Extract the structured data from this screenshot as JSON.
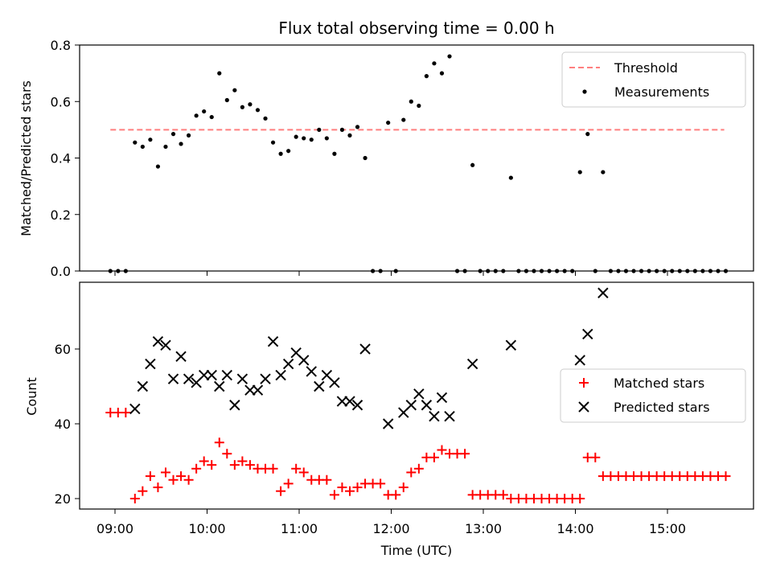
{
  "chart_data": [
    {
      "type": "scatter",
      "title": "Flux total observing time = 0.00 h",
      "xlabel": "",
      "ylabel": "Matched/Predicted stars",
      "ylim": [
        0,
        0.8
      ],
      "yticks": [
        "0.0",
        "0.2",
        "0.4",
        "0.6",
        "0.8"
      ],
      "threshold": {
        "name": "Threshold",
        "value": 0.5,
        "x_range": [
          "08:57",
          "15:37"
        ],
        "color": "#ff7f7f"
      },
      "legend_position": "top-right",
      "series": [
        {
          "name": "Measurements",
          "color": "#000000",
          "points": [
            [
              "08:57",
              0.0
            ],
            [
              "09:02",
              0.0
            ],
            [
              "09:07",
              0.0
            ],
            [
              "09:13",
              0.455
            ],
            [
              "09:18",
              0.44
            ],
            [
              "09:23",
              0.465
            ],
            [
              "09:28",
              0.37
            ],
            [
              "09:33",
              0.44
            ],
            [
              "09:38",
              0.485
            ],
            [
              "09:43",
              0.45
            ],
            [
              "09:48",
              0.48
            ],
            [
              "09:53",
              0.55
            ],
            [
              "09:58",
              0.565
            ],
            [
              "10:03",
              0.545
            ],
            [
              "10:08",
              0.7
            ],
            [
              "10:13",
              0.605
            ],
            [
              "10:18",
              0.64
            ],
            [
              "10:23",
              0.58
            ],
            [
              "10:28",
              0.59
            ],
            [
              "10:33",
              0.57
            ],
            [
              "10:38",
              0.54
            ],
            [
              "10:43",
              0.455
            ],
            [
              "10:48",
              0.415
            ],
            [
              "10:53",
              0.425
            ],
            [
              "10:58",
              0.475
            ],
            [
              "11:03",
              0.47
            ],
            [
              "11:08",
              0.465
            ],
            [
              "11:13",
              0.5
            ],
            [
              "11:18",
              0.47
            ],
            [
              "11:23",
              0.415
            ],
            [
              "11:28",
              0.5
            ],
            [
              "11:33",
              0.48
            ],
            [
              "11:38",
              0.51
            ],
            [
              "11:43",
              0.4
            ],
            [
              "11:48",
              0.0
            ],
            [
              "11:53",
              0.0
            ],
            [
              "11:58",
              0.525
            ],
            [
              "12:03",
              0.0
            ],
            [
              "12:08",
              0.535
            ],
            [
              "12:13",
              0.6
            ],
            [
              "12:18",
              0.585
            ],
            [
              "12:23",
              0.69
            ],
            [
              "12:28",
              0.735
            ],
            [
              "12:33",
              0.7
            ],
            [
              "12:38",
              0.76
            ],
            [
              "12:43",
              0.0
            ],
            [
              "12:48",
              0.0
            ],
            [
              "12:53",
              0.375
            ],
            [
              "12:58",
              0.0
            ],
            [
              "13:03",
              0.0
            ],
            [
              "13:08",
              0.0
            ],
            [
              "13:13",
              0.0
            ],
            [
              "13:18",
              0.33
            ],
            [
              "13:23",
              0.0
            ],
            [
              "13:28",
              0.0
            ],
            [
              "13:33",
              0.0
            ],
            [
              "13:38",
              0.0
            ],
            [
              "13:43",
              0.0
            ],
            [
              "13:48",
              0.0
            ],
            [
              "13:53",
              0.0
            ],
            [
              "13:58",
              0.0
            ],
            [
              "14:03",
              0.35
            ],
            [
              "14:08",
              0.485
            ],
            [
              "14:13",
              0.0
            ],
            [
              "14:18",
              0.35
            ],
            [
              "14:23",
              0.0
            ],
            [
              "14:28",
              0.0
            ],
            [
              "14:33",
              0.0
            ],
            [
              "14:38",
              0.0
            ],
            [
              "14:43",
              0.0
            ],
            [
              "14:48",
              0.0
            ],
            [
              "14:53",
              0.0
            ],
            [
              "14:58",
              0.0
            ],
            [
              "15:03",
              0.0
            ],
            [
              "15:08",
              0.0
            ],
            [
              "15:13",
              0.0
            ],
            [
              "15:18",
              0.0
            ],
            [
              "15:23",
              0.0
            ],
            [
              "15:28",
              0.0
            ],
            [
              "15:33",
              0.0
            ],
            [
              "15:38",
              0.0
            ]
          ]
        }
      ]
    },
    {
      "type": "scatter",
      "xlabel": "Time (UTC)",
      "ylabel": "Count",
      "ylim": [
        17,
        77
      ],
      "yticks": [
        "20",
        "40",
        "60"
      ],
      "xticks": [
        "09:00",
        "10:00",
        "11:00",
        "12:00",
        "13:00",
        "14:00",
        "15:00"
      ],
      "legend_position": "center-right",
      "series": [
        {
          "name": "Matched stars",
          "marker": "plus",
          "color": "#ff0000",
          "points": [
            [
              "08:57",
              43
            ],
            [
              "09:02",
              43
            ],
            [
              "09:07",
              43
            ],
            [
              "09:13",
              20
            ],
            [
              "09:18",
              22
            ],
            [
              "09:23",
              26
            ],
            [
              "09:28",
              23
            ],
            [
              "09:33",
              27
            ],
            [
              "09:38",
              25
            ],
            [
              "09:43",
              26
            ],
            [
              "09:48",
              25
            ],
            [
              "09:53",
              28
            ],
            [
              "09:58",
              30
            ],
            [
              "10:03",
              29
            ],
            [
              "10:08",
              35
            ],
            [
              "10:13",
              32
            ],
            [
              "10:18",
              29
            ],
            [
              "10:23",
              30
            ],
            [
              "10:28",
              29
            ],
            [
              "10:33",
              28
            ],
            [
              "10:38",
              28
            ],
            [
              "10:43",
              28
            ],
            [
              "10:48",
              22
            ],
            [
              "10:53",
              24
            ],
            [
              "10:58",
              28
            ],
            [
              "11:03",
              27
            ],
            [
              "11:08",
              25
            ],
            [
              "11:13",
              25
            ],
            [
              "11:18",
              25
            ],
            [
              "11:23",
              21
            ],
            [
              "11:28",
              23
            ],
            [
              "11:33",
              22
            ],
            [
              "11:38",
              23
            ],
            [
              "11:43",
              24
            ],
            [
              "11:48",
              24
            ],
            [
              "11:53",
              24
            ],
            [
              "11:58",
              21
            ],
            [
              "12:03",
              21
            ],
            [
              "12:08",
              23
            ],
            [
              "12:13",
              27
            ],
            [
              "12:18",
              28
            ],
            [
              "12:23",
              31
            ],
            [
              "12:28",
              31
            ],
            [
              "12:33",
              33
            ],
            [
              "12:38",
              32
            ],
            [
              "12:43",
              32
            ],
            [
              "12:48",
              32
            ],
            [
              "12:53",
              21
            ],
            [
              "12:58",
              21
            ],
            [
              "13:03",
              21
            ],
            [
              "13:08",
              21
            ],
            [
              "13:13",
              21
            ],
            [
              "13:18",
              20
            ],
            [
              "13:23",
              20
            ],
            [
              "13:28",
              20
            ],
            [
              "13:33",
              20
            ],
            [
              "13:38",
              20
            ],
            [
              "13:43",
              20
            ],
            [
              "13:48",
              20
            ],
            [
              "13:53",
              20
            ],
            [
              "13:58",
              20
            ],
            [
              "14:03",
              20
            ],
            [
              "14:08",
              31
            ],
            [
              "14:13",
              31
            ],
            [
              "14:18",
              26
            ],
            [
              "14:23",
              26
            ],
            [
              "14:28",
              26
            ],
            [
              "14:33",
              26
            ],
            [
              "14:38",
              26
            ],
            [
              "14:43",
              26
            ],
            [
              "14:48",
              26
            ],
            [
              "14:53",
              26
            ],
            [
              "14:58",
              26
            ],
            [
              "15:03",
              26
            ],
            [
              "15:08",
              26
            ],
            [
              "15:13",
              26
            ],
            [
              "15:18",
              26
            ],
            [
              "15:23",
              26
            ],
            [
              "15:28",
              26
            ],
            [
              "15:33",
              26
            ],
            [
              "15:38",
              26
            ]
          ]
        },
        {
          "name": "Predicted stars",
          "marker": "x",
          "color": "#000000",
          "points": [
            [
              "09:13",
              44
            ],
            [
              "09:18",
              50
            ],
            [
              "09:23",
              56
            ],
            [
              "09:28",
              62
            ],
            [
              "09:33",
              61
            ],
            [
              "09:38",
              52
            ],
            [
              "09:43",
              58
            ],
            [
              "09:48",
              52
            ],
            [
              "09:53",
              51
            ],
            [
              "09:58",
              53
            ],
            [
              "10:03",
              53
            ],
            [
              "10:08",
              50
            ],
            [
              "10:13",
              53
            ],
            [
              "10:18",
              45
            ],
            [
              "10:23",
              52
            ],
            [
              "10:28",
              49
            ],
            [
              "10:33",
              49
            ],
            [
              "10:38",
              52
            ],
            [
              "10:43",
              62
            ],
            [
              "10:48",
              53
            ],
            [
              "10:53",
              56
            ],
            [
              "10:58",
              59
            ],
            [
              "11:03",
              57
            ],
            [
              "11:08",
              54
            ],
            [
              "11:13",
              50
            ],
            [
              "11:18",
              53
            ],
            [
              "11:23",
              51
            ],
            [
              "11:28",
              46
            ],
            [
              "11:33",
              46
            ],
            [
              "11:38",
              45
            ],
            [
              "11:43",
              60
            ],
            [
              "11:58",
              40
            ],
            [
              "12:08",
              43
            ],
            [
              "12:13",
              45
            ],
            [
              "12:18",
              48
            ],
            [
              "12:23",
              45
            ],
            [
              "12:28",
              42
            ],
            [
              "12:33",
              47
            ],
            [
              "12:38",
              42
            ],
            [
              "12:53",
              56
            ],
            [
              "13:18",
              61
            ],
            [
              "14:03",
              57
            ],
            [
              "14:08",
              64
            ],
            [
              "14:18",
              75
            ]
          ]
        }
      ]
    }
  ]
}
